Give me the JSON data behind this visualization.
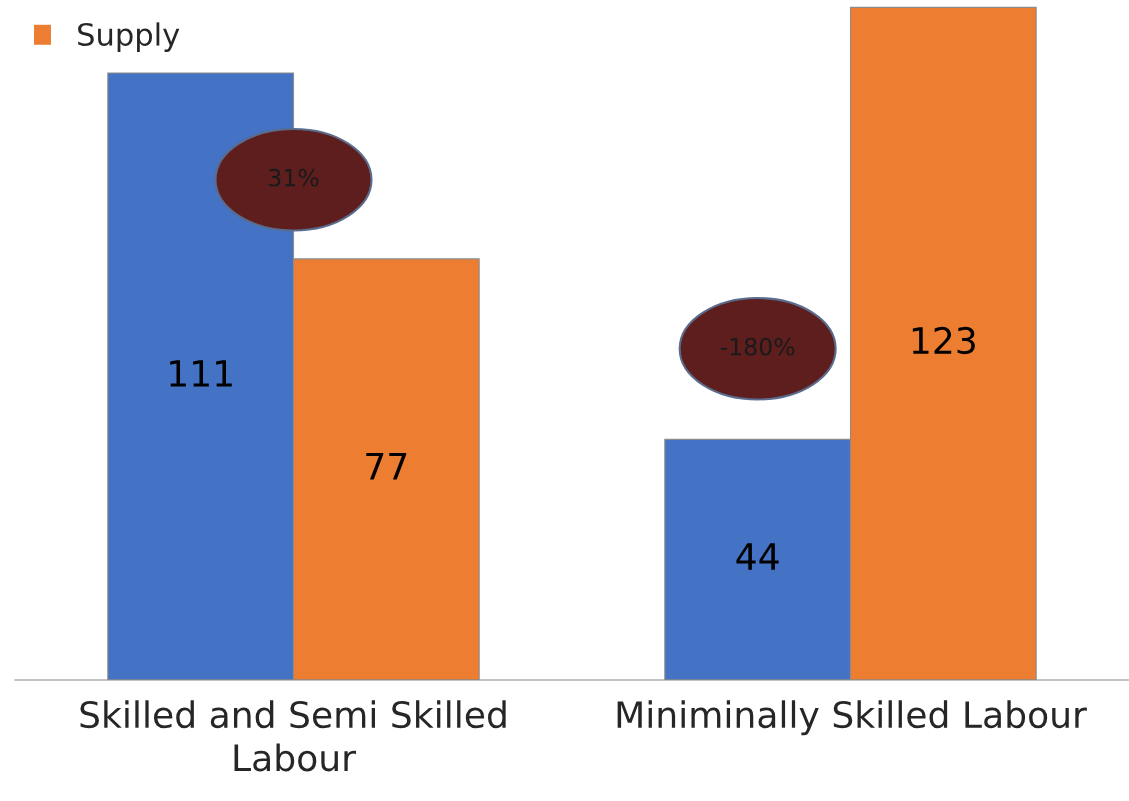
{
  "chart_data": {
    "type": "bar",
    "categories": [
      "Skilled and Semi Skilled Labour",
      "Miniminally Skilled Labour"
    ],
    "series": [
      {
        "color": "#4472c4",
        "values": [
          111,
          44
        ]
      },
      {
        "name": "Supply",
        "color": "#ed7d31",
        "values": [
          77,
          123
        ]
      }
    ],
    "data_labels": true,
    "legend": "top left",
    "grid": false,
    "annotations": [
      "31%",
      "-180%"
    ]
  }
}
